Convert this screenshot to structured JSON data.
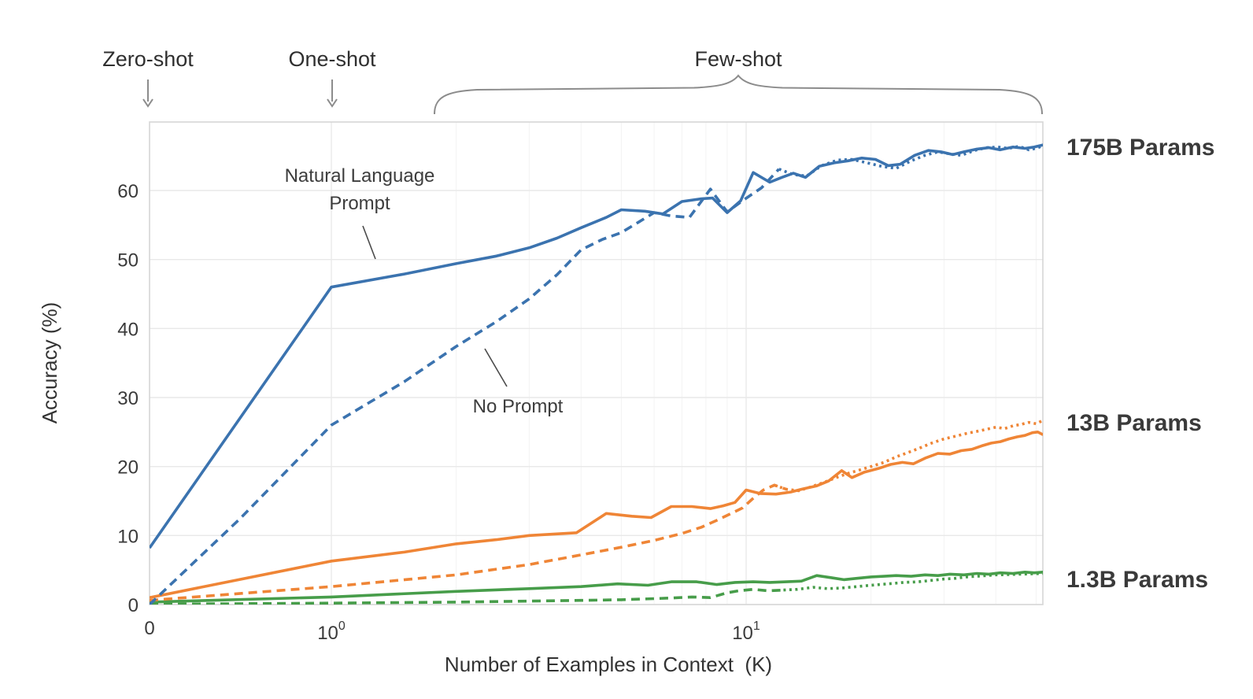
{
  "figure": {
    "stage_labels": {
      "zero_shot": "Zero-shot",
      "one_shot": "One-shot",
      "few_shot": "Few-shot"
    },
    "curve_annotations": {
      "natural_language_prompt_line1": "Natural Language",
      "natural_language_prompt_line2": "Prompt",
      "no_prompt": "No Prompt"
    }
  },
  "chart_data": {
    "type": "line",
    "x_scale": "symlog (linear from 0 to 1, log10 beyond 1)",
    "xlabel": "Number of Examples in Context  (K)",
    "ylabel": "Accuracy (%)",
    "xlim": [
      0,
      52
    ],
    "ylim": [
      0,
      70
    ],
    "y_ticks": [
      0,
      10,
      20,
      30,
      40,
      50,
      60
    ],
    "x_ticks": [
      {
        "text": "0",
        "value": 0
      },
      {
        "base": "10",
        "exp": "0",
        "value": 1
      },
      {
        "base": "10",
        "exp": "1",
        "value": 10
      }
    ],
    "x_minor_gridlines": [
      2,
      3,
      4,
      5,
      6,
      7,
      8,
      9,
      20,
      30,
      40,
      50
    ],
    "grid_major_color": "#e9e9e9",
    "grid_minor_color": "#f3f3f3",
    "plot_border_color": "#d6d6d6",
    "legend_note": "solid = Natural Language Prompt, dashed = No Prompt",
    "models": [
      {
        "name": "175B Params",
        "line_color": "#3b73af",
        "label_color": "#5d8fc4",
        "lines": [
          {
            "prompt": "Natural Language Prompt",
            "style": "solid",
            "points": [
              [
                0,
                8.2
              ],
              [
                1,
                46
              ],
              [
                1.5,
                47.9
              ],
              [
                2,
                49.4
              ],
              [
                2.5,
                50.5
              ],
              [
                3,
                51.7
              ],
              [
                3.5,
                53.1
              ],
              [
                4,
                54.6
              ],
              [
                4.6,
                56.1
              ],
              [
                5,
                57.2
              ],
              [
                5.7,
                57.0
              ],
              [
                6.3,
                56.6
              ],
              [
                7,
                58.4
              ],
              [
                7.8,
                58.8
              ],
              [
                8.3,
                58.9
              ],
              [
                9,
                56.8
              ],
              [
                9.7,
                58.5
              ],
              [
                10.4,
                62.6
              ],
              [
                11.4,
                61.2
              ],
              [
                12.2,
                61.9
              ],
              [
                13,
                62.5
              ],
              [
                13.9,
                61.9
              ],
              [
                15,
                63.5
              ],
              [
                16.3,
                64.0
              ],
              [
                17.6,
                64.3
              ],
              [
                19,
                64.7
              ],
              [
                20.5,
                64.5
              ],
              [
                22,
                63.6
              ],
              [
                23.5,
                63.8
              ],
              [
                25.5,
                65.1
              ],
              [
                27.5,
                65.8
              ],
              [
                29.5,
                65.6
              ],
              [
                31.5,
                65.2
              ],
              [
                33.5,
                65.6
              ],
              [
                36,
                66.0
              ],
              [
                38.5,
                66.2
              ],
              [
                41,
                65.9
              ],
              [
                44,
                66.3
              ],
              [
                47,
                66.1
              ],
              [
                49.5,
                66.3
              ],
              [
                52,
                66.6
              ]
            ]
          },
          {
            "prompt": "No Prompt",
            "style": "dashed",
            "points": [
              [
                0,
                0
              ],
              [
                0.5,
                12.5
              ],
              [
                1,
                26
              ],
              [
                1.5,
                32.3
              ],
              [
                2,
                37.4
              ],
              [
                2.5,
                41
              ],
              [
                3,
                44.3
              ],
              [
                3.5,
                47.8
              ],
              [
                4,
                51.4
              ],
              [
                4.5,
                52.9
              ],
              [
                5,
                53.9
              ],
              [
                5.5,
                55.4
              ],
              [
                6,
                56.8
              ],
              [
                6.6,
                56.3
              ],
              [
                7.3,
                56.1
              ],
              [
                8.2,
                60.2
              ],
              [
                9,
                56.9
              ],
              [
                9.9,
                58.7
              ],
              [
                10.9,
                60.4
              ],
              [
                12,
                63.1
              ],
              [
                13,
                62.3
              ],
              [
                14,
                62.1
              ],
              [
                15.2,
                63.6
              ],
              [
                16.6,
                64.4
              ],
              [
                18,
                64.5
              ],
              [
                19.6,
                64.0
              ],
              [
                21.2,
                63.5
              ],
              [
                23,
                63.2
              ],
              [
                25,
                64.3
              ],
              [
                27,
                65.1
              ],
              [
                29,
                65.6
              ],
              [
                31,
                65.3
              ],
              [
                33,
                65.1
              ],
              [
                35.5,
                65.8
              ],
              [
                38,
                66.2
              ],
              [
                40.5,
                66.3
              ],
              [
                43,
                66.1
              ],
              [
                45.5,
                66.4
              ],
              [
                48,
                65.9
              ],
              [
                50,
                66.1
              ],
              [
                52,
                66.5
              ]
            ]
          }
        ]
      },
      {
        "name": "13B Params",
        "line_color": "#ef8536",
        "label_color": "#f0913c",
        "lines": [
          {
            "prompt": "Natural Language Prompt",
            "style": "solid",
            "points": [
              [
                0,
                1.0
              ],
              [
                1,
                6.3
              ],
              [
                1.5,
                7.6
              ],
              [
                2,
                8.8
              ],
              [
                2.5,
                9.4
              ],
              [
                3,
                10.0
              ],
              [
                3.9,
                10.4
              ],
              [
                4.6,
                13.2
              ],
              [
                5.3,
                12.8
              ],
              [
                5.9,
                12.6
              ],
              [
                6.6,
                14.2
              ],
              [
                7.4,
                14.2
              ],
              [
                8.2,
                13.9
              ],
              [
                8.8,
                14.3
              ],
              [
                9.4,
                14.8
              ],
              [
                10,
                16.6
              ],
              [
                10.8,
                16.1
              ],
              [
                11.8,
                16.0
              ],
              [
                12.8,
                16.3
              ],
              [
                13.8,
                16.8
              ],
              [
                14.8,
                17.2
              ],
              [
                15.8,
                17.9
              ],
              [
                17,
                19.4
              ],
              [
                18,
                18.4
              ],
              [
                19.3,
                19.2
              ],
              [
                20.8,
                19.7
              ],
              [
                22.3,
                20.3
              ],
              [
                23.8,
                20.6
              ],
              [
                25.3,
                20.4
              ],
              [
                27,
                21.2
              ],
              [
                29,
                21.9
              ],
              [
                31,
                21.8
              ],
              [
                33,
                22.3
              ],
              [
                35,
                22.5
              ],
              [
                37,
                23.0
              ],
              [
                39,
                23.4
              ],
              [
                41,
                23.6
              ],
              [
                43,
                24.0
              ],
              [
                45,
                24.3
              ],
              [
                47,
                24.5
              ],
              [
                49,
                24.9
              ],
              [
                50.5,
                25.0
              ],
              [
                52,
                24.6
              ]
            ]
          },
          {
            "prompt": "No Prompt",
            "style": "dashed",
            "points": [
              [
                0,
                0.6
              ],
              [
                1,
                2.6
              ],
              [
                2,
                4.3
              ],
              [
                3,
                5.8
              ],
              [
                4,
                7.2
              ],
              [
                5,
                8.3
              ],
              [
                6,
                9.3
              ],
              [
                7,
                10.3
              ],
              [
                7.8,
                11.2
              ],
              [
                8.5,
                12.2
              ],
              [
                9.2,
                13.2
              ],
              [
                9.8,
                14.0
              ],
              [
                10.4,
                15.4
              ],
              [
                11,
                16.6
              ],
              [
                11.7,
                17.3
              ],
              [
                12.5,
                16.7
              ],
              [
                13.4,
                16.5
              ],
              [
                14.4,
                17.1
              ],
              [
                15.4,
                17.7
              ],
              [
                16.5,
                18.4
              ],
              [
                17.6,
                19.0
              ],
              [
                18.8,
                19.5
              ],
              [
                20,
                20.0
              ],
              [
                21.5,
                20.6
              ],
              [
                23,
                21.4
              ],
              [
                24.5,
                22.0
              ],
              [
                26,
                22.6
              ],
              [
                28,
                23.4
              ],
              [
                30,
                24.0
              ],
              [
                32,
                24.4
              ],
              [
                34,
                24.8
              ],
              [
                36,
                25.1
              ],
              [
                38,
                25.4
              ],
              [
                40,
                25.7
              ],
              [
                42,
                25.5
              ],
              [
                44,
                25.9
              ],
              [
                46,
                26.1
              ],
              [
                48,
                26.4
              ],
              [
                50,
                26.2
              ],
              [
                52,
                26.7
              ]
            ]
          }
        ]
      },
      {
        "name": "1.3B Params",
        "line_color": "#479d4a",
        "label_color": "#48ab4e",
        "lines": [
          {
            "prompt": "Natural Language Prompt",
            "style": "solid",
            "points": [
              [
                0,
                0.35
              ],
              [
                1,
                1.1
              ],
              [
                2,
                1.9
              ],
              [
                3,
                2.3
              ],
              [
                4,
                2.6
              ],
              [
                4.9,
                3.0
              ],
              [
                5.8,
                2.8
              ],
              [
                6.6,
                3.3
              ],
              [
                7.6,
                3.3
              ],
              [
                8.5,
                2.9
              ],
              [
                9.4,
                3.2
              ],
              [
                10.4,
                3.3
              ],
              [
                11.4,
                3.2
              ],
              [
                12.5,
                3.3
              ],
              [
                13.6,
                3.4
              ],
              [
                14.8,
                4.2
              ],
              [
                16,
                3.9
              ],
              [
                17.2,
                3.6
              ],
              [
                18.5,
                3.8
              ],
              [
                20,
                4.0
              ],
              [
                21.5,
                4.1
              ],
              [
                23,
                4.2
              ],
              [
                25,
                4.1
              ],
              [
                27,
                4.3
              ],
              [
                29,
                4.2
              ],
              [
                31,
                4.4
              ],
              [
                33.5,
                4.3
              ],
              [
                36,
                4.5
              ],
              [
                38.5,
                4.4
              ],
              [
                41,
                4.6
              ],
              [
                44,
                4.5
              ],
              [
                47,
                4.7
              ],
              [
                49.5,
                4.6
              ],
              [
                52,
                4.7
              ]
            ]
          },
          {
            "prompt": "No Prompt",
            "style": "dashed",
            "points": [
              [
                0,
                0.05
              ],
              [
                1,
                0.2
              ],
              [
                2,
                0.35
              ],
              [
                3,
                0.5
              ],
              [
                4,
                0.6
              ],
              [
                5,
                0.7
              ],
              [
                6,
                0.85
              ],
              [
                6.6,
                0.95
              ],
              [
                7.4,
                1.1
              ],
              [
                8.2,
                1.0
              ],
              [
                9,
                1.7
              ],
              [
                9.6,
                2.0
              ],
              [
                10.4,
                2.2
              ],
              [
                11.3,
                2.0
              ],
              [
                12.3,
                2.1
              ],
              [
                13.3,
                2.2
              ],
              [
                14.5,
                2.5
              ],
              [
                15.7,
                2.3
              ],
              [
                17,
                2.4
              ],
              [
                18.5,
                2.6
              ],
              [
                20,
                2.8
              ],
              [
                22,
                3.0
              ],
              [
                24,
                3.2
              ],
              [
                26,
                3.3
              ],
              [
                28,
                3.5
              ],
              [
                30,
                3.7
              ],
              [
                32,
                3.8
              ],
              [
                34,
                4.0
              ],
              [
                36,
                4.1
              ],
              [
                38,
                4.2
              ],
              [
                40,
                4.3
              ],
              [
                43,
                4.35
              ],
              [
                46,
                4.4
              ],
              [
                49,
                4.45
              ],
              [
                52,
                4.5
              ]
            ]
          }
        ]
      }
    ]
  }
}
